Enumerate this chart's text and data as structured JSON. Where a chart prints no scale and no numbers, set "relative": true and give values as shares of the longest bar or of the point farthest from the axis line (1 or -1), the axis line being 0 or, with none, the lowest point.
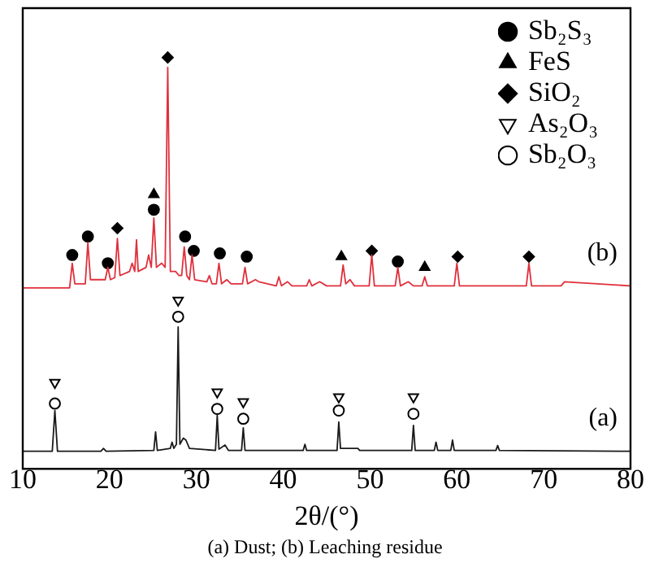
{
  "chart_data": {
    "type": "line",
    "relative": true,
    "xlabel": "2θ/(°)",
    "xlim": [
      10,
      80
    ],
    "xticks": [
      10,
      20,
      30,
      40,
      50,
      60,
      70,
      80
    ],
    "grid": false,
    "legend": "top right",
    "line_style": "solid",
    "annotations": [
      "(a) Dust; (b) Leaching residue"
    ],
    "series": [
      {
        "name": "(a)",
        "color": "#1a1a1a",
        "marker": "none",
        "x": [
          10,
          13.4,
          13.7,
          14.0,
          19.0,
          19.3,
          19.6,
          25.1,
          25.3,
          25.5,
          27.0,
          27.2,
          27.4,
          27.7,
          27.9,
          28.1,
          28.5,
          28.8,
          29.2,
          32.2,
          32.4,
          32.6,
          33.3,
          33.7,
          35.2,
          35.4,
          35.6,
          42.3,
          42.5,
          42.7,
          46.2,
          46.4,
          46.6,
          48.6,
          48.8,
          54.8,
          55.0,
          55.2,
          57.4,
          57.6,
          57.8,
          59.3,
          59.5,
          59.7,
          64.5,
          64.7,
          64.9,
          80
        ],
        "values": [
          0.043,
          0.043,
          0.142,
          0.043,
          0.043,
          0.05,
          0.043,
          0.045,
          0.09,
          0.045,
          0.05,
          0.065,
          0.05,
          0.06,
          0.345,
          0.06,
          0.075,
          0.07,
          0.05,
          0.045,
          0.13,
          0.048,
          0.058,
          0.045,
          0.045,
          0.1,
          0.045,
          0.045,
          0.06,
          0.045,
          0.045,
          0.114,
          0.05,
          0.05,
          0.045,
          0.045,
          0.106,
          0.045,
          0.045,
          0.065,
          0.045,
          0.045,
          0.07,
          0.045,
          0.045,
          0.057,
          0.045,
          0.043
        ]
      },
      {
        "name": "(b)",
        "color": "#e0303c",
        "marker": "none",
        "x": [
          10,
          15.4,
          15.7,
          16.0,
          17.2,
          17.5,
          17.8,
          19.5,
          19.8,
          20.1,
          20.6,
          20.9,
          21.2,
          22.3,
          22.6,
          22.9,
          23.1,
          23.3,
          24.2,
          24.5,
          24.8,
          25.1,
          25.4,
          26.0,
          26.4,
          26.7,
          27.0,
          27.6,
          28.0,
          28.3,
          28.6,
          28.9,
          29.2,
          29.5,
          29.8,
          31.2,
          31.5,
          31.8,
          32.3,
          32.6,
          32.9,
          33.5,
          34.0,
          35.3,
          35.6,
          35.9,
          36.8,
          37.2,
          39.2,
          39.5,
          39.8,
          40.5,
          41.0,
          42.7,
          43.0,
          43.3,
          44.2,
          45.0,
          46.6,
          46.9,
          47.2,
          47.7,
          48.2,
          49.9,
          50.2,
          50.5,
          52.9,
          53.2,
          53.5,
          54.4,
          55.0,
          56.0,
          56.3,
          56.6,
          59.7,
          60.0,
          60.3,
          68.0,
          68.3,
          68.6,
          72.0,
          72.4,
          80
        ],
        "values": [
          0.44,
          0.44,
          0.5,
          0.45,
          0.45,
          0.55,
          0.46,
          0.46,
          0.49,
          0.46,
          0.465,
          0.56,
          0.47,
          0.48,
          0.5,
          0.48,
          0.557,
          0.48,
          0.49,
          0.52,
          0.49,
          0.61,
          0.49,
          0.5,
          0.49,
          0.976,
          0.48,
          0.48,
          0.47,
          0.47,
          0.54,
          0.47,
          0.46,
          0.52,
          0.46,
          0.455,
          0.47,
          0.45,
          0.45,
          0.5,
          0.45,
          0.46,
          0.45,
          0.45,
          0.49,
          0.45,
          0.46,
          0.455,
          0.445,
          0.467,
          0.445,
          0.455,
          0.445,
          0.445,
          0.46,
          0.445,
          0.455,
          0.445,
          0.445,
          0.496,
          0.45,
          0.46,
          0.445,
          0.445,
          0.52,
          0.445,
          0.445,
          0.49,
          0.445,
          0.455,
          0.445,
          0.445,
          0.467,
          0.445,
          0.445,
          0.5,
          0.445,
          0.445,
          0.5,
          0.445,
          0.445,
          0.455,
          0.445
        ]
      },
      {
        "name": "Sb₂S₃",
        "type": "scatter",
        "color": "#000000",
        "marker": "circle",
        "x": [
          15.7,
          17.5,
          19.8,
          25.1,
          28.7,
          29.7,
          32.7,
          35.8,
          53.2
        ],
        "values": [
          0.52,
          0.565,
          0.5,
          0.63,
          0.565,
          0.53,
          0.524,
          0.516,
          0.504
        ]
      },
      {
        "name": "FeS",
        "type": "scatter",
        "color": "#000000",
        "marker": "triangle",
        "x": [
          25.1,
          46.7,
          56.3
        ],
        "values": [
          0.667,
          0.516,
          0.49
        ]
      },
      {
        "name": "SiO₂",
        "type": "scatter",
        "color": "#000000",
        "marker": "diamond",
        "x": [
          20.9,
          26.7,
          50.2,
          60.1,
          68.3
        ],
        "values": [
          0.585,
          1.0,
          0.53,
          0.516,
          0.516
        ]
      },
      {
        "name": "As₂O₃",
        "type": "scatter",
        "color": "#000000",
        "marker": "triangle_down_open",
        "x": [
          13.7,
          27.9,
          32.4,
          35.4,
          46.4,
          55.0
        ],
        "values": [
          0.21,
          0.41,
          0.187,
          0.163,
          0.175,
          0.175
        ]
      },
      {
        "name": "Sb₂O₃",
        "type": "scatter",
        "color": "#000000",
        "marker": "circle_open",
        "x": [
          13.7,
          27.9,
          32.4,
          35.4,
          46.4,
          55.0
        ],
        "values": [
          0.159,
          0.37,
          0.146,
          0.122,
          0.142,
          0.134
        ]
      }
    ]
  }
}
